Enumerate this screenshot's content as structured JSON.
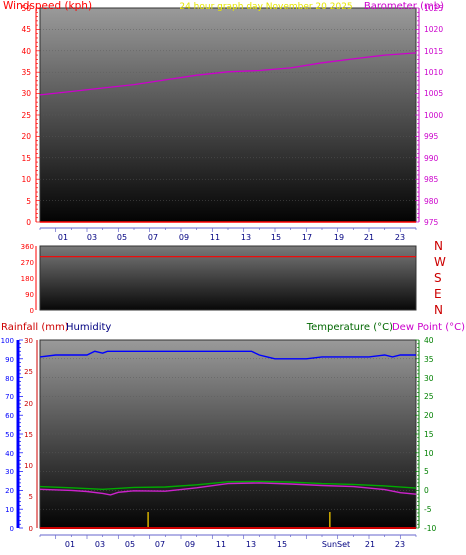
{
  "colors": {
    "wind": "#ff0000",
    "baro": "#cc00cc",
    "caption": "#e6e600",
    "axis_blue": "#000080",
    "rain": "#cc0000",
    "humidity": "#0000ff",
    "temperature": "#006600",
    "temp_line": "#00aa00",
    "dew_line": "#cc22cc",
    "dirs": "#cc0000",
    "green_ticks": "#008000"
  },
  "chart_data": [
    {
      "type": "line",
      "title": "24 hour graph day November 20 2025",
      "ylabel_left": "Windspeed (kph)",
      "ylabel_right": "Barometer (mb)",
      "x_ticks": [
        "01",
        "03",
        "05",
        "07",
        "09",
        "11",
        "13",
        "15",
        "17",
        "19",
        "21",
        "23"
      ],
      "xlim": [
        0,
        24
      ],
      "ylim_left": [
        0,
        50
      ],
      "yticks_left": [
        "0",
        "5",
        "10",
        "15",
        "20",
        "25",
        "30",
        "35",
        "40",
        "45",
        "50"
      ],
      "ylim_right": [
        975,
        1025
      ],
      "yticks_right": [
        "975",
        "980",
        "985",
        "990",
        "995",
        "1000",
        "1005",
        "1010",
        "1015",
        "1020",
        "1025"
      ],
      "series": [
        {
          "axis": "right",
          "x": [
            0,
            2,
            4,
            6,
            8,
            10,
            12,
            14,
            16,
            18,
            20,
            22,
            24
          ],
          "values": [
            1004.7,
            1005.5,
            1006.3,
            1007.1,
            1008.2,
            1009.3,
            1010.1,
            1010.4,
            1011.0,
            1012.2,
            1013.1,
            1014.0,
            1014.5
          ]
        },
        {
          "axis": "left",
          "x": [
            0,
            24
          ],
          "values": [
            0,
            0
          ]
        }
      ]
    },
    {
      "type": "line",
      "ylabel_left": "",
      "ylim": [
        0,
        360
      ],
      "yticks": [
        "0",
        "90",
        "180",
        "270",
        "360"
      ],
      "direction_labels": [
        "N",
        "W",
        "S",
        "E",
        "N"
      ],
      "series": [
        {
          "x": [
            0,
            24
          ],
          "values": [
            300,
            300
          ]
        }
      ]
    },
    {
      "type": "line",
      "xlim": [
        0,
        24
      ],
      "x_ticks": [
        "01",
        "03",
        "05",
        "07",
        "09",
        "11",
        "13",
        "15",
        "17",
        "19",
        "21",
        "23"
      ],
      "sun_label": "Sun",
      "set_label": "Set",
      "ylabel_rain": "Rainfall (mm)",
      "ylabel_humidity": "Humidity",
      "ylabel_temp": "Temperature (°C)",
      "ylabel_dew": "Dew Point (°C)",
      "ylim_humidity": [
        0,
        100
      ],
      "yticks_humidity": [
        "0",
        "10",
        "20",
        "30",
        "40",
        "50",
        "60",
        "70",
        "80",
        "90",
        "100"
      ],
      "ylim_rain": [
        0,
        30
      ],
      "yticks_rain": [
        "0",
        "5",
        "10",
        "15",
        "20",
        "25",
        "30"
      ],
      "ylim_temp": [
        -10,
        40
      ],
      "yticks_temp": [
        "-10",
        "-5",
        "0",
        "5",
        "10",
        "15",
        "20",
        "25",
        "30",
        "35",
        "40"
      ],
      "event_markers_x": [
        6.9,
        18.5
      ],
      "series": [
        {
          "axis": "humidity",
          "x": [
            0,
            1,
            2,
            3,
            3.5,
            4,
            4.3,
            5,
            6,
            8,
            10,
            12,
            13.5,
            14,
            14.5,
            15,
            16,
            17,
            18,
            19,
            20,
            21,
            22,
            22.5,
            23,
            24
          ],
          "values": [
            91,
            92,
            92,
            92,
            94,
            93,
            94,
            94,
            94,
            94,
            94,
            94,
            94,
            92,
            91,
            90,
            90,
            90,
            91,
            91,
            91,
            91,
            92,
            91,
            92,
            92
          ]
        },
        {
          "axis": "temp",
          "x": [
            0,
            2,
            4,
            6,
            8,
            10,
            12,
            14,
            16,
            18,
            20,
            22,
            24
          ],
          "values": [
            1.0,
            0.7,
            0.3,
            0.8,
            0.9,
            1.5,
            2.3,
            2.4,
            2.2,
            1.8,
            1.6,
            1.2,
            0.6
          ]
        },
        {
          "axis": "temp",
          "x": [
            0,
            2,
            3,
            4,
            4.5,
            5,
            6,
            8,
            10,
            12,
            14,
            16,
            18,
            20,
            22,
            23,
            24
          ],
          "values": [
            0.3,
            0.0,
            -0.3,
            -0.8,
            -1.2,
            -0.5,
            -0.1,
            -0.2,
            0.7,
            1.8,
            2.0,
            1.7,
            1.3,
            1.0,
            0.2,
            -0.6,
            -1.0
          ]
        },
        {
          "axis": "rain",
          "x": [
            0,
            24
          ],
          "values": [
            0,
            0
          ]
        }
      ]
    }
  ]
}
